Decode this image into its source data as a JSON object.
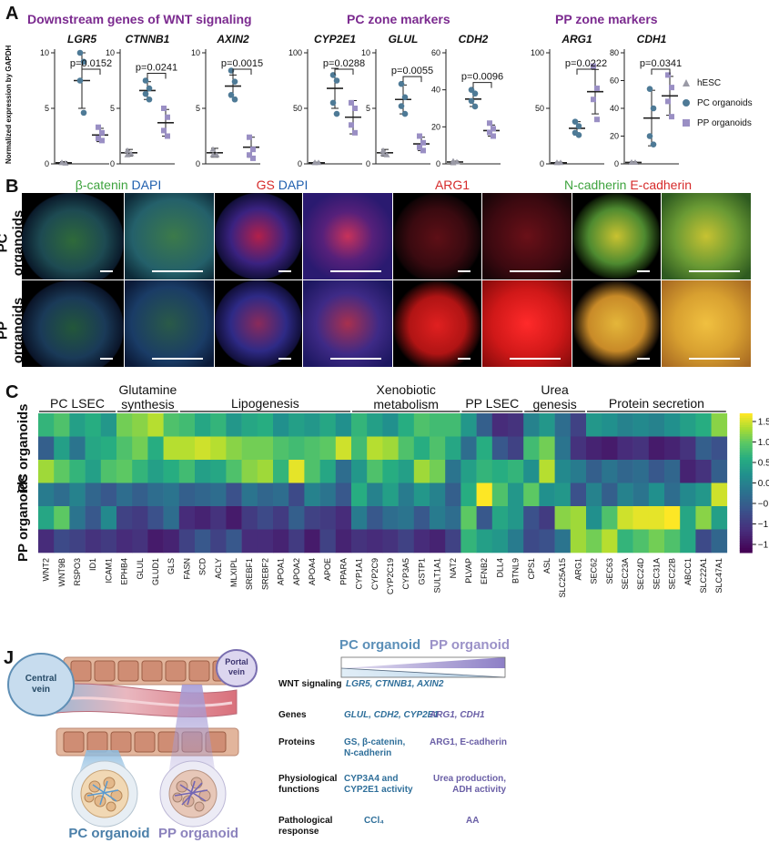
{
  "panel_letters": {
    "a": "A",
    "b": "B",
    "c": "C",
    "j": "J"
  },
  "panel_a": {
    "headers": {
      "wnt": "Downstream genes of WNT signaling",
      "pc": "PC zone markers",
      "pp": "PP zone markers"
    },
    "ylabel": "Normalized expression by GAPDH",
    "legend": [
      {
        "label": "hESC",
        "color": "#9a9aa6",
        "marker": "triangle"
      },
      {
        "label": "PC organoids",
        "color": "#4e7a96",
        "marker": "circle"
      },
      {
        "label": "PP organoids",
        "color": "#9a8fc4",
        "marker": "square"
      }
    ]
  },
  "chart_data": [
    {
      "type": "scatter",
      "title": "LGR5",
      "ylim": [
        0,
        10
      ],
      "ticks": [
        0,
        5,
        10
      ],
      "pvalue": "p=0.0152",
      "groups": [
        {
          "name": "hESC",
          "mean": 0.1,
          "sd": 0.1,
          "points": [
            0.1,
            0.05,
            0.1
          ]
        },
        {
          "name": "PC organoids",
          "mean": 7.5,
          "sd": 2.5,
          "points": [
            10,
            9.2,
            7.5,
            4.6
          ]
        },
        {
          "name": "PP organoids",
          "mean": 2.6,
          "sd": 0.6,
          "points": [
            3.3,
            2.8,
            2.3,
            2.1
          ]
        }
      ]
    },
    {
      "type": "scatter",
      "title": "CTNNB1",
      "ylim": [
        0,
        10
      ],
      "ticks": [
        0,
        5,
        10
      ],
      "pvalue": "p=0.0241",
      "groups": [
        {
          "name": "hESC",
          "mean": 1.0,
          "sd": 0.3,
          "points": [
            1.2,
            0.9,
            0.8
          ]
        },
        {
          "name": "PC organoids",
          "mean": 6.6,
          "sd": 0.8,
          "points": [
            7.5,
            6.8,
            6.3,
            5.8
          ]
        },
        {
          "name": "PP organoids",
          "mean": 3.7,
          "sd": 1.2,
          "points": [
            5.0,
            4.2,
            3.0,
            2.5
          ]
        }
      ]
    },
    {
      "type": "scatter",
      "title": "AXIN2",
      "ylim": [
        0,
        10
      ],
      "ticks": [
        0,
        5,
        10
      ],
      "pvalue": "p=0.0015",
      "groups": [
        {
          "name": "hESC",
          "mean": 1.0,
          "sd": 0.4,
          "points": [
            1.3,
            0.8,
            0.8
          ]
        },
        {
          "name": "PC organoids",
          "mean": 7.0,
          "sd": 1.0,
          "points": [
            8.4,
            7.4,
            6.2,
            5.8
          ]
        },
        {
          "name": "PP organoids",
          "mean": 1.5,
          "sd": 0.9,
          "points": [
            2.4,
            1.3,
            0.8,
            0.5
          ]
        }
      ]
    },
    {
      "type": "scatter",
      "title": "CYP2E1",
      "ylim": [
        0,
        100
      ],
      "ticks": [
        0,
        50,
        100
      ],
      "pvalue": "p=0.0288",
      "groups": [
        {
          "name": "hESC",
          "mean": 1,
          "sd": 0.5,
          "points": [
            1,
            1,
            1
          ]
        },
        {
          "name": "PC organoids",
          "mean": 68,
          "sd": 18,
          "points": [
            80,
            75,
            55,
            45
          ]
        },
        {
          "name": "PP organoids",
          "mean": 42,
          "sd": 15,
          "points": [
            55,
            50,
            35,
            28
          ]
        }
      ]
    },
    {
      "type": "scatter",
      "title": "GLUL",
      "ylim": [
        0,
        10
      ],
      "ticks": [
        0,
        5,
        10
      ],
      "pvalue": "p=0.0055",
      "groups": [
        {
          "name": "hESC",
          "mean": 1.0,
          "sd": 0.3,
          "points": [
            1.2,
            0.8,
            0.9
          ]
        },
        {
          "name": "PC organoids",
          "mean": 5.8,
          "sd": 1.3,
          "points": [
            7.2,
            6.0,
            5.2,
            4.5
          ]
        },
        {
          "name": "PP organoids",
          "mean": 1.8,
          "sd": 0.6,
          "points": [
            2.5,
            1.9,
            1.5,
            1.2
          ]
        }
      ]
    },
    {
      "type": "scatter",
      "title": "CDH2",
      "ylim": [
        0,
        60
      ],
      "ticks": [
        0,
        20,
        40,
        60
      ],
      "pvalue": "p=0.0096",
      "groups": [
        {
          "name": "hESC",
          "mean": 1,
          "sd": 0.5,
          "points": [
            1.5,
            1,
            0.5
          ]
        },
        {
          "name": "PC organoids",
          "mean": 35,
          "sd": 4,
          "points": [
            40,
            38,
            34,
            31
          ]
        },
        {
          "name": "PP organoids",
          "mean": 18,
          "sd": 3,
          "points": [
            22,
            19,
            17,
            15
          ]
        }
      ]
    },
    {
      "type": "scatter",
      "title": "ARG1",
      "ylim": [
        0,
        100
      ],
      "ticks": [
        0,
        50,
        100
      ],
      "pvalue": "p=0.0222",
      "groups": [
        {
          "name": "hESC",
          "mean": 1,
          "sd": 0.5,
          "points": [
            1,
            1,
            1
          ]
        },
        {
          "name": "PC organoids",
          "mean": 32,
          "sd": 6,
          "points": [
            38,
            34,
            28,
            26
          ]
        },
        {
          "name": "PP organoids",
          "mean": 65,
          "sd": 20,
          "points": [
            88,
            68,
            58,
            40
          ]
        }
      ]
    },
    {
      "type": "scatter",
      "title": "CDH1",
      "ylim": [
        0,
        80
      ],
      "ticks": [
        0,
        20,
        40,
        60,
        80
      ],
      "pvalue": "p=0.0341",
      "groups": [
        {
          "name": "hESC",
          "mean": 1,
          "sd": 0.5,
          "points": [
            1,
            1,
            1
          ]
        },
        {
          "name": "PC organoids",
          "mean": 33,
          "sd": 20,
          "points": [
            54,
            40,
            20,
            14
          ]
        },
        {
          "name": "PP organoids",
          "mean": 49,
          "sd": 14,
          "points": [
            64,
            55,
            45,
            34
          ]
        }
      ]
    },
    {
      "type": "heatmap",
      "title": "",
      "row_group_labels": [
        "PC organoids",
        "PP organoids"
      ],
      "rows": 6,
      "columns": [
        "WNT2",
        "WNT9B",
        "RSPO3",
        "ID1",
        "ICAM1",
        "EPHB4",
        "GLUL",
        "GLUD1",
        "GLS",
        "FASN",
        "SCD",
        "ACLY",
        "MLXIPL",
        "SREBF1",
        "SREBF2",
        "APOA1",
        "APOA2",
        "APOA4",
        "APOE",
        "PPARA",
        "CYP1A1",
        "CYP2C9",
        "CYP2C19",
        "CYP3A5",
        "GSTP1",
        "SULT1A1",
        "NAT2",
        "PLVAP",
        "EFNB2",
        "DLL4",
        "BTNL9",
        "CPS1",
        "ASL",
        "SLC25A15",
        "ARG1",
        "SEC62",
        "SEC63",
        "SEC23A",
        "SEC24D",
        "SEC31A",
        "SEC22B",
        "ABCC1",
        "SLC22A1",
        "SLC47A1"
      ],
      "column_groups": [
        {
          "label": "PC LSEC",
          "start": 0,
          "end": 4
        },
        {
          "label": "Glutamine\nsynthesis",
          "start": 5,
          "end": 8
        },
        {
          "label": "Lipogenesis",
          "start": 9,
          "end": 19
        },
        {
          "label": "Xenobiotic\nmetabolism",
          "start": 20,
          "end": 26
        },
        {
          "label": "PP LSEC",
          "start": 27,
          "end": 30
        },
        {
          "label": "Urea\ngenesis",
          "start": 31,
          "end": 34
        },
        {
          "label": "Protein secretion",
          "start": 35,
          "end": 43
        }
      ],
      "colorbar": {
        "ticks": [
          1.5,
          1.0,
          0.5,
          0.0,
          -0.5,
          -1.0,
          -1.5
        ],
        "tick_labels": [
          "1.5",
          "1.0",
          "0.5",
          "0.0",
          "−0.5",
          "−1.0",
          "−1.5"
        ],
        "range": [
          -1.7,
          1.7
        ]
      },
      "values": [
        [
          0.7,
          0.9,
          0.4,
          0.6,
          0.3,
          1.1,
          1.2,
          1.4,
          0.9,
          0.8,
          0.5,
          0.7,
          0.3,
          0.5,
          0.6,
          0.2,
          0.4,
          0.3,
          0.5,
          0.2,
          0.7,
          0.4,
          0.2,
          0.6,
          0.9,
          0.8,
          0.8,
          0.3,
          -0.5,
          -1.2,
          -1.1,
          0.0,
          0.3,
          -0.3,
          -0.9,
          0.3,
          0.2,
          0.0,
          0.1,
          0.0,
          0.2,
          0.4,
          0.6,
          1.2
        ],
        [
          -0.5,
          0.4,
          -0.2,
          0.5,
          0.6,
          0.9,
          1.1,
          0.6,
          1.4,
          1.4,
          1.5,
          1.4,
          1.2,
          1.1,
          1.1,
          0.9,
          0.8,
          0.9,
          1.0,
          1.5,
          0.8,
          1.4,
          1.3,
          0.9,
          0.6,
          0.9,
          0.5,
          -0.3,
          0.6,
          -0.6,
          -0.9,
          0.8,
          1.1,
          -0.2,
          -1.1,
          -1.3,
          -1.4,
          -1.2,
          -1.1,
          -1.4,
          -1.3,
          -1.1,
          -0.5,
          -0.7
        ],
        [
          1.3,
          1.0,
          0.7,
          0.4,
          0.9,
          1.0,
          0.7,
          0.4,
          0.6,
          0.8,
          0.4,
          0.5,
          0.9,
          1.2,
          1.3,
          0.7,
          1.6,
          0.9,
          0.5,
          -0.3,
          0.3,
          0.9,
          0.6,
          0.4,
          1.3,
          1.1,
          -0.2,
          0.4,
          0.7,
          0.6,
          0.7,
          0.2,
          1.4,
          0.1,
          -0.1,
          -0.5,
          -0.2,
          -0.4,
          -0.3,
          -0.6,
          -0.4,
          -1.3,
          -1.1,
          -0.5
        ],
        [
          -0.1,
          -0.3,
          0.0,
          -0.4,
          -0.6,
          -0.3,
          -0.5,
          -0.3,
          -0.2,
          -0.5,
          -0.4,
          -0.3,
          -0.7,
          -0.2,
          -0.4,
          -0.3,
          -0.8,
          0.0,
          -0.2,
          -0.6,
          0.6,
          0.0,
          0.4,
          -0.1,
          0.3,
          0.0,
          -0.5,
          0.6,
          1.7,
          0.9,
          0.3,
          1.0,
          0.2,
          0.3,
          -0.7,
          0.0,
          -0.5,
          0.0,
          -0.2,
          0.2,
          -0.3,
          0.1,
          0.3,
          1.5
        ],
        [
          0.5,
          1.0,
          -0.2,
          -0.6,
          0.1,
          -0.9,
          -1.0,
          -0.7,
          -0.3,
          -1.2,
          -1.3,
          -1.1,
          -1.4,
          -1.0,
          -0.8,
          -1.0,
          -0.5,
          -0.9,
          -1.0,
          -1.2,
          -0.1,
          -0.6,
          -0.3,
          -0.2,
          -0.6,
          -0.1,
          -0.3,
          1.0,
          -0.6,
          0.5,
          0.3,
          -0.7,
          -1.0,
          1.2,
          1.3,
          0.2,
          0.9,
          1.5,
          1.6,
          1.6,
          1.7,
          0.5,
          1.2,
          0.4
        ],
        [
          -1.2,
          -0.8,
          -0.9,
          -1.1,
          -1.0,
          -1.2,
          -1.1,
          -1.4,
          -1.3,
          -0.9,
          -0.6,
          -0.9,
          -0.6,
          -1.2,
          -1.2,
          -1.3,
          -1.0,
          -1.4,
          -0.9,
          -1.3,
          -1.1,
          -1.2,
          -1.1,
          -0.9,
          -1.2,
          -1.3,
          -0.9,
          0.7,
          0.4,
          0.3,
          -0.1,
          -0.8,
          -0.7,
          -0.2,
          1.3,
          1.1,
          1.4,
          0.7,
          0.9,
          1.1,
          0.9,
          0.5,
          -0.8,
          -0.4
        ]
      ]
    }
  ],
  "panel_b": {
    "col_headers": [
      [
        {
          "text": "β-catenin",
          "color": "#3ea33e"
        },
        {
          "text": " DAPI",
          "color": "#1f5fae"
        }
      ],
      [
        {
          "text": "GS",
          "color": "#d62b2b"
        },
        {
          "text": " DAPI",
          "color": "#1f5fae"
        }
      ],
      [
        {
          "text": "ARG1",
          "color": "#d62b2b"
        }
      ],
      [
        {
          "text": "N-cadherin",
          "color": "#3ea33e"
        },
        {
          "text": " E-cadherin",
          "color": "#d62b2b"
        }
      ]
    ],
    "row_labels": [
      "PC organoids",
      "PP organoids"
    ]
  },
  "panel_j": {
    "labels": {
      "central_vein": "Central\nvein",
      "portal_vein": "Portal\nvein",
      "pc_organoid": "PC organoid",
      "pp_organoid": "PP organoid"
    },
    "header_pc": "PC organoid",
    "header_pp": "PP organoid",
    "rows": [
      {
        "label": "WNT signaling",
        "pc": "LGR5, CTNNB1, AXIN2",
        "pp": "",
        "italic": true
      },
      {
        "label": "Genes",
        "pc": "GLUL, CDH2, CYP2E1",
        "pp": "ARG1, CDH1",
        "italic": true
      },
      {
        "label": "Proteins",
        "pc": "GS, β-catenin,\nN-cadherin",
        "pp": "ARG1, E-cadherin",
        "italic": false
      },
      {
        "label": "Physiological\nfunctions",
        "pc": "CYP3A4 and\nCYP2E1 activity",
        "pp": "Urea production,\nADH activity",
        "italic": false
      },
      {
        "label": "Pathological\nresponse",
        "pc": "CCl₄",
        "pp": "AA",
        "italic": false
      }
    ],
    "colors": {
      "pc": "#2f6f9a",
      "pp": "#6a5fa6"
    }
  }
}
